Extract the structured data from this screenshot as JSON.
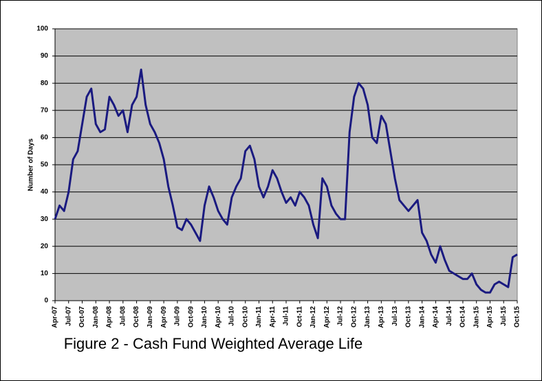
{
  "chart_data": {
    "type": "line",
    "title": "Figure 2 - Cash Fund Weighted Average Life",
    "y_label": "Number of Days",
    "categories": [
      "Apr-07",
      null,
      null,
      "Jul-07",
      null,
      null,
      "Oct-07",
      null,
      null,
      "Jan-08",
      null,
      null,
      "Apr-08",
      null,
      null,
      "Jul-08",
      null,
      null,
      "Oct-08",
      null,
      null,
      "Jan-09",
      null,
      null,
      "Apr-09",
      null,
      null,
      "Jul-09",
      null,
      null,
      "Oct-09",
      null,
      null,
      "Jan-10",
      null,
      null,
      "Apr-10",
      null,
      null,
      "Jul-10",
      null,
      null,
      "Oct-10",
      null,
      null,
      "Jan-11",
      null,
      null,
      "Apr-11",
      null,
      null,
      "Jul-11",
      null,
      null,
      "Oct-11",
      null,
      null,
      "Jan-12",
      null,
      null,
      "Apr-12",
      null,
      null,
      "Jul-12",
      null,
      null,
      "Oct-12",
      null,
      null,
      "Jan-13",
      null,
      null,
      "Apr-13",
      null,
      null,
      "Jul-13",
      null,
      null,
      "Oct-13",
      null,
      null,
      "Jan-14",
      null,
      null,
      "Apr-14",
      null,
      null,
      "Jul-14",
      null,
      null,
      "Oct-14",
      null,
      null,
      "Jan-15",
      null,
      null,
      "Apr-15",
      null,
      null,
      "Jul-15",
      null,
      null,
      "Oct-15"
    ],
    "values": [
      30,
      35,
      33,
      40,
      52,
      55,
      65,
      75,
      78,
      65,
      62,
      63,
      75,
      72,
      68,
      70,
      62,
      72,
      75,
      85,
      72,
      65,
      62,
      58,
      52,
      42,
      35,
      27,
      26,
      30,
      28,
      25,
      22,
      35,
      42,
      38,
      33,
      30,
      28,
      38,
      42,
      45,
      55,
      57,
      52,
      42,
      38,
      42,
      48,
      45,
      40,
      36,
      38,
      35,
      40,
      38,
      35,
      28,
      23,
      45,
      42,
      35,
      32,
      30,
      30,
      62,
      75,
      80,
      78,
      72,
      60,
      58,
      68,
      65,
      55,
      45,
      37,
      35,
      33,
      35,
      37,
      25,
      22,
      17,
      14,
      20,
      15,
      11,
      10,
      9,
      8,
      8,
      10,
      6,
      4,
      3,
      3,
      6,
      7,
      6,
      5,
      16,
      17
    ],
    "color": "#1a1a80",
    "ylim": [
      0,
      100
    ],
    "yticks": [
      0,
      10,
      20,
      30,
      40,
      50,
      60,
      70,
      80,
      90,
      100
    ],
    "grid": true
  }
}
